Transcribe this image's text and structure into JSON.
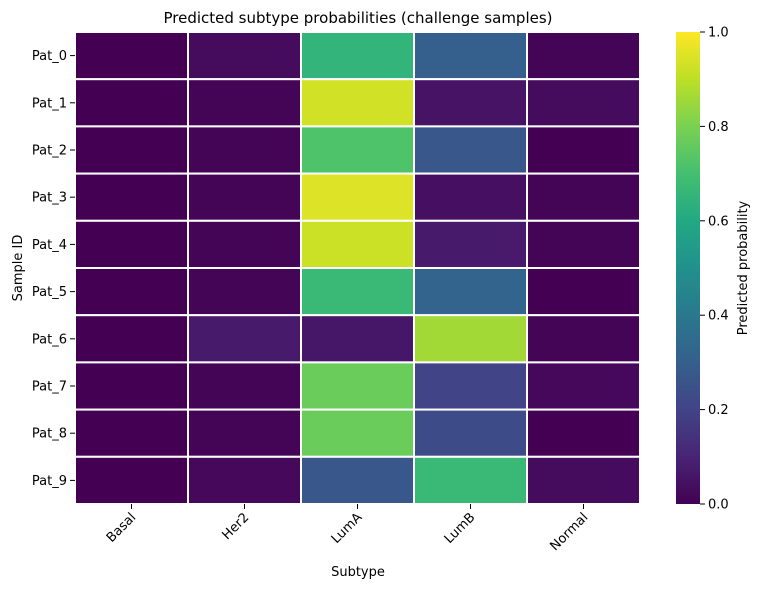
{
  "chart_data": {
    "type": "heatmap",
    "title": "Predicted subtype probabilities (challenge samples)",
    "xlabel": "Subtype",
    "ylabel": "Sample ID",
    "colorbar_label": "Predicted probability",
    "colormap": "viridis",
    "vmin": 0.0,
    "vmax": 1.0,
    "colorbar_ticks": [
      "0.0",
      "0.2",
      "0.4",
      "0.6",
      "0.8",
      "1.0"
    ],
    "x_categories": [
      "Basal",
      "Her2",
      "LumA",
      "LumB",
      "Normal"
    ],
    "y_categories": [
      "Pat_0",
      "Pat_1",
      "Pat_2",
      "Pat_3",
      "Pat_4",
      "Pat_5",
      "Pat_6",
      "Pat_7",
      "Pat_8",
      "Pat_9"
    ],
    "values": [
      [
        0.0,
        0.03,
        0.65,
        0.3,
        0.01
      ],
      [
        0.0,
        0.01,
        0.93,
        0.05,
        0.03
      ],
      [
        0.0,
        0.01,
        0.72,
        0.27,
        0.0
      ],
      [
        0.0,
        0.01,
        0.95,
        0.04,
        0.01
      ],
      [
        0.0,
        0.01,
        0.92,
        0.07,
        0.01
      ],
      [
        0.0,
        0.01,
        0.67,
        0.32,
        0.0
      ],
      [
        0.0,
        0.07,
        0.06,
        0.86,
        0.01
      ],
      [
        0.0,
        0.01,
        0.77,
        0.2,
        0.02
      ],
      [
        0.0,
        0.01,
        0.77,
        0.23,
        0.0
      ],
      [
        0.0,
        0.02,
        0.27,
        0.67,
        0.03
      ]
    ]
  }
}
